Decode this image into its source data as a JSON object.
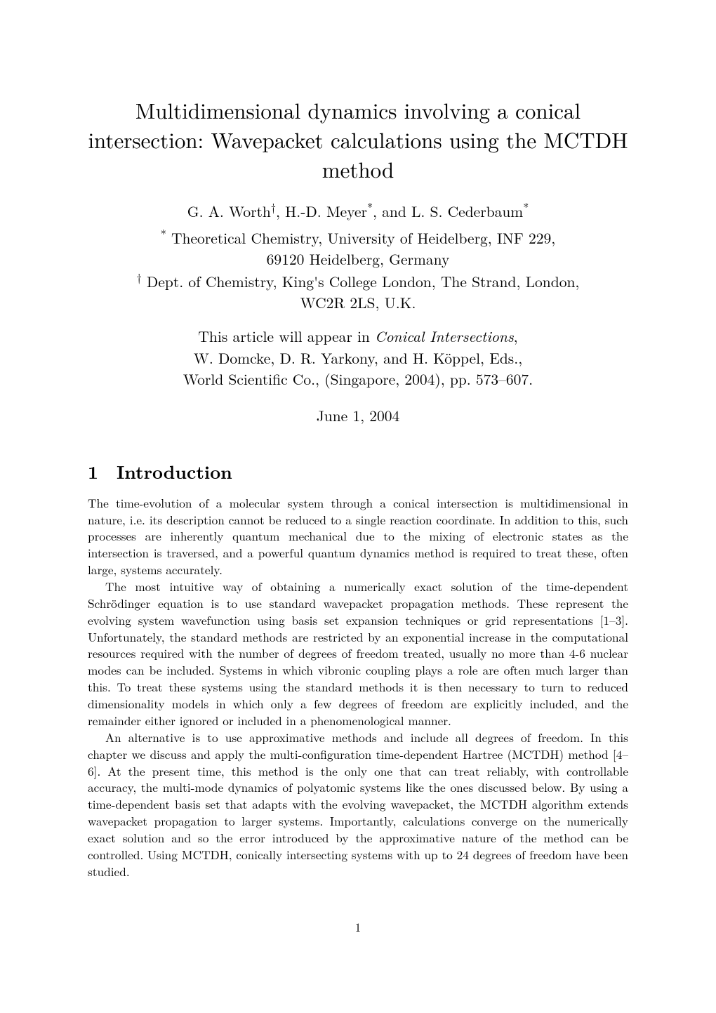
{
  "title": "Multidimensional dynamics involving a conical intersection: Wavepacket calculations using the MCTDH method",
  "authors_line": "G. A. Worth†, H.-D. Meyer*, and L. S. Cederbaum*",
  "affil1": "* Theoretical Chemistry, University of Heidelberg, INF 229, 69120 Heidelberg, Germany",
  "affil2": "† Dept. of Chemistry, King's College London, The Strand, London, WC2R 2LS, U.K.",
  "pub_line1": "This article will appear in ",
  "pub_line1_italic": "Conical Intersections",
  "pub_line1_end": ",",
  "pub_line2": "W. Domcke, D. R. Yarkony, and H. Köppel, Eds.,",
  "pub_line3": "World Scientific Co., (Singapore, 2004), pp. 573–607.",
  "date": "June 1, 2004",
  "section1_num": "1",
  "section1_title": "Introduction",
  "para1": "The time-evolution of a molecular system through a conical intersection is multidimensional in nature, i.e. its description cannot be reduced to a single reaction coordinate. In addition to this, such processes are inherently quantum mechanical due to the mixing of electronic states as the intersection is traversed, and a powerful quantum dynamics method is required to treat these, often large, systems accurately.",
  "para2": "The most intuitive way of obtaining a numerically exact solution of the time-dependent Schrödinger equation is to use standard wavepacket propagation methods. These represent the evolving system wavefunction using basis set expansion techniques or grid representations [1–3]. Unfortunately, the standard methods are restricted by an exponential increase in the computational resources required with the number of degrees of freedom treated, usually no more than 4-6 nuclear modes can be included. Systems in which vibronic coupling plays a role are often much larger than this. To treat these systems using the standard methods it is then necessary to turn to reduced dimensionality models in which only a few degrees of freedom are explicitly included, and the remainder either ignored or included in a phenomenological manner.",
  "para3": "An alternative is to use approximative methods and include all degrees of freedom. In this chapter we discuss and apply the multi-configuration time-dependent Hartree (MCTDH) method [4–6]. At the present time, this method is the only one that can treat reliably, with controllable accuracy, the multi-mode dynamics of polyatomic systems like the ones discussed below. By using a time-dependent basis set that adapts with the evolving wavepacket, the MCTDH algorithm extends wavepacket propagation to larger systems. Importantly, calculations converge on the numerically exact solution and so the error introduced by the approximative nature of the method can be controlled. Using MCTDH, conically intersecting systems with up to 24 degrees of freedom have been studied.",
  "pagenum": "1",
  "fonts": {
    "title_size_pt": 23,
    "author_size_pt": 16,
    "body_size_pt": 13,
    "heading_size_pt": 19
  },
  "colors": {
    "text": "#000000",
    "background": "#ffffff"
  }
}
